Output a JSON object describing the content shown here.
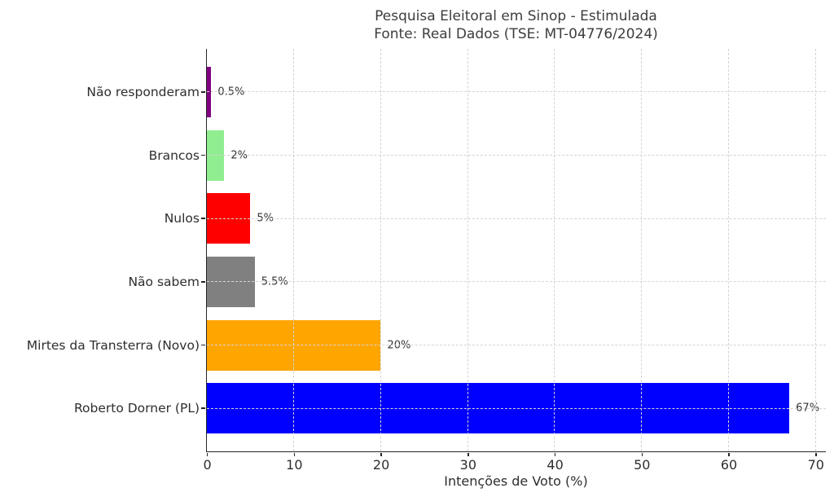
{
  "chart_data": {
    "type": "bar",
    "orientation": "horizontal",
    "title": "Pesquisa Eleitoral em Sinop - Estimulada",
    "subtitle": "Fonte: Real Dados (TSE: MT-04776/2024)",
    "xlabel": "Intenções de Voto (%)",
    "ylabel": "",
    "categories": [
      "Não responderam",
      "Brancos",
      "Nulos",
      "Não sabem",
      "Mirtes da Transterra (Novo)",
      "Roberto Dorner (PL)"
    ],
    "values": [
      0.5,
      2,
      5,
      5.5,
      20,
      67
    ],
    "value_labels": [
      "0.5%",
      "2%",
      "5%",
      "5.5%",
      "20%",
      "67%"
    ],
    "colors": [
      "#800080",
      "#90EE90",
      "#FF0000",
      "#808080",
      "#FFA500",
      "#0000FF"
    ],
    "category_order": "top-to-bottom",
    "xlim": [
      0,
      71.2
    ],
    "xticks": [
      0,
      10,
      20,
      30,
      40,
      50,
      60,
      70
    ],
    "grid": {
      "horizontal": true,
      "vertical": true,
      "style": "dashed",
      "color": "#d4d4d4",
      "drawn_above_bars": true
    },
    "legend": "none",
    "background": "#ffffff",
    "spine_color": "#262626"
  }
}
